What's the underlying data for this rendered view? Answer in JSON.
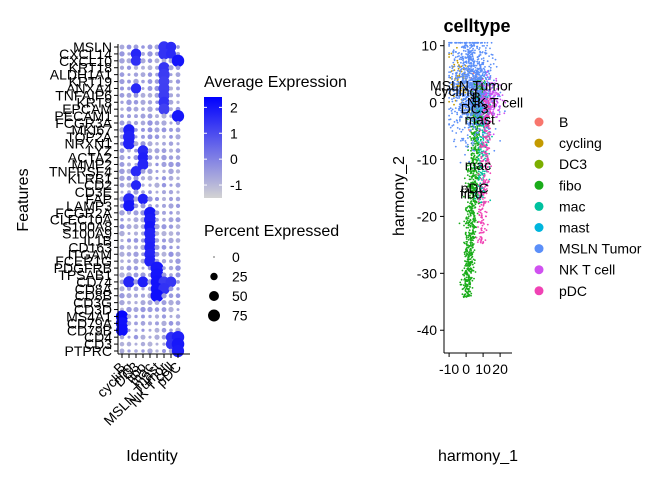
{
  "chart_data": [
    {
      "type": "dotplot",
      "xlabel": "Identity",
      "ylabel": "Features",
      "identities": [
        "B",
        "cycling",
        "DC3",
        "fibo",
        "mac",
        "mast",
        "MSLN Tumor",
        "NK T cell",
        "pDC"
      ],
      "features_top_to_bottom": [
        "MSLN",
        "CXCL14",
        "CXCL10",
        "KRT18",
        "ALDH1A1",
        "KRT19",
        "ANXA4",
        "TNFAIP6",
        "KRT8",
        "EPCAM",
        "PECAM1",
        "FCGR3A",
        "MKI67",
        "TOP2A",
        "NRXN1",
        "LYZ",
        "ACTA2",
        "MMP2",
        "TNFRSF4",
        "KLRB1",
        "CD2",
        "CD3E",
        "FAP",
        "LAMP3",
        "FCGR2A",
        "CLEC10A",
        "S100A8",
        "S100A9",
        "IL1B",
        "CD163",
        "ITGAM",
        "FCER1G",
        "PDGFRB",
        "TPSAB1",
        "CD74",
        "CD8A",
        "CD8B",
        "CD3G",
        "CD3D",
        "MS4A1",
        "CD79A",
        "CD79B",
        "CD4",
        "CD3",
        "PTPRC"
      ],
      "color_scale": {
        "title": "Average Expression",
        "ticks": [
          2,
          1,
          0,
          -1
        ],
        "low_color": "#d3d3d3",
        "high_color": "#0000ff",
        "range": [
          -1.5,
          2.4
        ]
      },
      "size_scale": {
        "title": "Percent Expressed",
        "ticks": [
          0,
          25,
          50,
          75
        ]
      },
      "groups": [
        {
          "identity": "MSLN Tumor",
          "features": [
            "MSLN",
            "CXCL14",
            "KRT18",
            "ALDH1A1",
            "KRT19",
            "ANXA4",
            "TNFAIP6",
            "KRT8",
            "EPCAM",
            "CD74",
            "CD8A"
          ],
          "avg_expression": 1.5,
          "pct": 65
        },
        {
          "identity": "cycling",
          "features": [
            "MKI67",
            "TOP2A",
            "NRXN1",
            "FAP",
            "LAMP3",
            "CD74"
          ],
          "avg_expression": 2.0,
          "pct": 70
        },
        {
          "identity": "DC3",
          "features": [
            "CXCL14",
            "CXCL10",
            "ANXA4",
            "TNFRSF4",
            "CD2"
          ],
          "avg_expression": 1.8,
          "pct": 55
        },
        {
          "identity": "fibo",
          "features": [
            "ACTA2",
            "MMP2",
            "LYZ",
            "FAP",
            "CD74"
          ],
          "avg_expression": 1.9,
          "pct": 60
        },
        {
          "identity": "mac",
          "features": [
            "FCGR2A",
            "CLEC10A",
            "S100A8",
            "S100A9",
            "IL1B",
            "CD163",
            "ITGAM",
            "FCER1G"
          ],
          "avg_expression": 2.0,
          "pct": 70
        },
        {
          "identity": "mast",
          "features": [
            "PDGFRB",
            "TPSAB1",
            "CD74",
            "CD8A",
            "CD8B"
          ],
          "avg_expression": 2.2,
          "pct": 85
        },
        {
          "identity": "NK T cell",
          "features": [
            "MSLN",
            "CXCL14",
            "CD74",
            "CD4",
            "CD3"
          ],
          "avg_expression": 1.7,
          "pct": 55
        },
        {
          "identity": "pDC",
          "features": [
            "CXCL10",
            "PECAM1",
            "CD4",
            "CD3",
            "PTPRC"
          ],
          "avg_expression": 2.1,
          "pct": 80
        },
        {
          "identity": "B",
          "features": [
            "MS4A1",
            "CD79A",
            "CD79B"
          ],
          "avg_expression": 2.3,
          "pct": 80
        }
      ]
    },
    {
      "type": "scatter",
      "title": "celltype",
      "xlabel": "harmony_1",
      "ylabel": "harmony_2",
      "xlim": [
        -13,
        27
      ],
      "ylim": [
        -44,
        11
      ],
      "x_ticks": [
        -10,
        0,
        10,
        20
      ],
      "x_tick_labels": [
        "-10",
        "0",
        "10",
        "20"
      ],
      "y_ticks": [
        10,
        0,
        -10,
        -20,
        -30,
        -40
      ],
      "grid": false,
      "legend_position": "right",
      "series": [
        {
          "name": "B",
          "color": "#f8766d",
          "count": 60,
          "center": [
            6,
            1
          ],
          "spread": [
            2,
            2
          ]
        },
        {
          "name": "cycling",
          "color": "#c49a00",
          "count": 80,
          "center": [
            -4,
            4
          ],
          "spread": [
            2.5,
            2.5
          ]
        },
        {
          "name": "DC3",
          "color": "#7cae00",
          "count": 60,
          "center": [
            5,
            -1
          ],
          "spread": [
            2,
            2
          ]
        },
        {
          "name": "fibo",
          "color": "#1aac1a",
          "count": 900,
          "center": [
            4,
            -15
          ],
          "spread": [
            3,
            12
          ]
        },
        {
          "name": "mac",
          "color": "#00c19f",
          "count": 250,
          "center": [
            10,
            -8
          ],
          "spread": [
            3,
            6
          ]
        },
        {
          "name": "mast",
          "color": "#00b5dd",
          "count": 60,
          "center": [
            8,
            -1
          ],
          "spread": [
            2,
            2
          ]
        },
        {
          "name": "MSLN Tumor",
          "color": "#5b8ff9",
          "count": 1100,
          "center": [
            3,
            3
          ],
          "spread": [
            6,
            4.5
          ]
        },
        {
          "name": "NK T cell",
          "color": "#d051f0",
          "count": 180,
          "center": [
            14,
            0.5
          ],
          "spread": [
            3.5,
            2
          ]
        },
        {
          "name": "pDC",
          "color": "#f042b4",
          "count": 250,
          "center": [
            11,
            -12
          ],
          "spread": [
            2.5,
            8
          ]
        }
      ],
      "labels": [
        {
          "text": "MSLN Tumor",
          "x": 3,
          "y": 3
        },
        {
          "text": "cycling",
          "x": -6,
          "y": 2
        },
        {
          "text": "B",
          "x": 6,
          "y": 1
        },
        {
          "text": "NK T cell",
          "x": 17,
          "y": 0
        },
        {
          "text": "DC3",
          "x": 5,
          "y": -1
        },
        {
          "text": "mast",
          "x": 8,
          "y": -3
        },
        {
          "text": "mac",
          "x": 7,
          "y": -11
        },
        {
          "text": "pDC",
          "x": 5,
          "y": -15
        },
        {
          "text": "fibo",
          "x": 3,
          "y": -16
        }
      ]
    }
  ]
}
